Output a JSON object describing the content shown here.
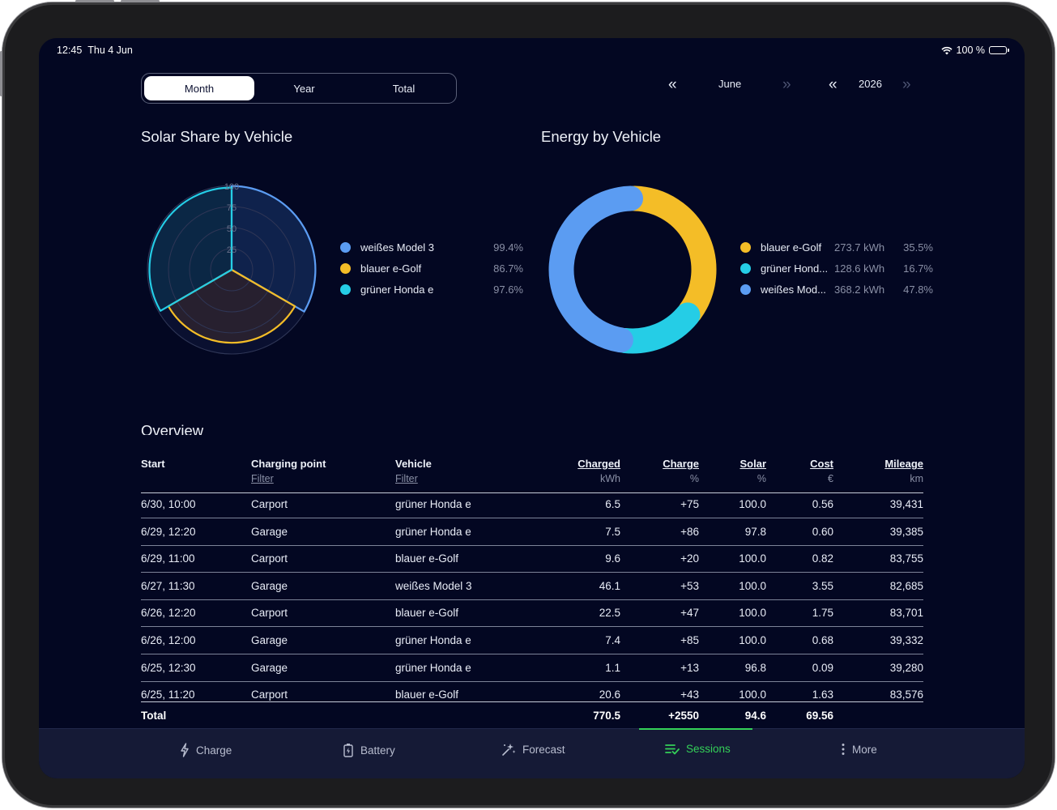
{
  "status_bar": {
    "time": "12:45",
    "date": "Thu 4 Jun",
    "battery": "100 %"
  },
  "period_tabs": [
    {
      "label": "Month",
      "active": true
    },
    {
      "label": "Year",
      "active": false
    },
    {
      "label": "Total",
      "active": false
    }
  ],
  "month_nav": {
    "label": "June",
    "prev_icon": "double-chevron-left-icon",
    "next_icon": "double-chevron-right-icon"
  },
  "year_nav": {
    "label": "2026"
  },
  "solar_share": {
    "title": "Solar Share by Vehicle",
    "ticks": [
      "100",
      "75",
      "50",
      "25"
    ],
    "legend": [
      {
        "name": "weißes Model 3",
        "value": "99.4%",
        "color": "#5b9cf2"
      },
      {
        "name": "blauer e-Golf",
        "value": "86.7%",
        "color": "#f4bd27"
      },
      {
        "name": "grüner Honda e",
        "value": "97.6%",
        "color": "#25cde6"
      }
    ]
  },
  "energy": {
    "title": "Energy by Vehicle",
    "legend": [
      {
        "name": "blauer e-Golf",
        "kwh": "273.7 kWh",
        "pct": "35.5%",
        "color": "#f4bd27"
      },
      {
        "name": "grüner Hond...",
        "kwh": "128.6 kWh",
        "pct": "16.7%",
        "color": "#25cde6"
      },
      {
        "name": "weißes Mod...",
        "kwh": "368.2 kWh",
        "pct": "47.8%",
        "color": "#5b9cf2"
      }
    ]
  },
  "chart_data": [
    {
      "type": "radar",
      "title": "Solar Share by Vehicle",
      "categories": [
        "weißes Model 3",
        "blauer e-Golf",
        "grüner Honda e"
      ],
      "values": [
        99.4,
        86.7,
        97.6
      ],
      "ylim": [
        0,
        100
      ],
      "ticks": [
        25,
        50,
        75,
        100
      ]
    },
    {
      "type": "pie",
      "title": "Energy by Vehicle",
      "categories": [
        "blauer e-Golf",
        "grüner Honda e",
        "weißes Model 3"
      ],
      "values": [
        273.7,
        128.6,
        368.2
      ],
      "percent": [
        35.5,
        16.7,
        47.8
      ]
    }
  ],
  "overview": {
    "title": "Overview",
    "columns": {
      "start": "Start",
      "point": "Charging point",
      "point_filter": "Filter",
      "vehicle": "Vehicle",
      "vehicle_filter": "Filter",
      "charged": "Charged",
      "charged_unit": "kWh",
      "charge": "Charge",
      "charge_unit": "%",
      "solar": "Solar",
      "solar_unit": "%",
      "cost": "Cost",
      "cost_unit": "€",
      "mileage": "Mileage",
      "mileage_unit": "km"
    },
    "rows": [
      {
        "start": "6/30, 10:00",
        "point": "Carport",
        "vehicle": "grüner Honda e",
        "charged": "6.5",
        "charge": "+75",
        "solar": "100.0",
        "cost": "0.56",
        "mileage": "39,431"
      },
      {
        "start": "6/29, 12:20",
        "point": "Garage",
        "vehicle": "grüner Honda e",
        "charged": "7.5",
        "charge": "+86",
        "solar": "97.8",
        "cost": "0.60",
        "mileage": "39,385"
      },
      {
        "start": "6/29, 11:00",
        "point": "Carport",
        "vehicle": "blauer e-Golf",
        "charged": "9.6",
        "charge": "+20",
        "solar": "100.0",
        "cost": "0.82",
        "mileage": "83,755"
      },
      {
        "start": "6/27, 11:30",
        "point": "Garage",
        "vehicle": "weißes Model 3",
        "charged": "46.1",
        "charge": "+53",
        "solar": "100.0",
        "cost": "3.55",
        "mileage": "82,685"
      },
      {
        "start": "6/26, 12:20",
        "point": "Carport",
        "vehicle": "blauer e-Golf",
        "charged": "22.5",
        "charge": "+47",
        "solar": "100.0",
        "cost": "1.75",
        "mileage": "83,701"
      },
      {
        "start": "6/26, 12:00",
        "point": "Garage",
        "vehicle": "grüner Honda e",
        "charged": "7.4",
        "charge": "+85",
        "solar": "100.0",
        "cost": "0.68",
        "mileage": "39,332"
      },
      {
        "start": "6/25, 12:30",
        "point": "Garage",
        "vehicle": "grüner Honda e",
        "charged": "1.1",
        "charge": "+13",
        "solar": "96.8",
        "cost": "0.09",
        "mileage": "39,280"
      },
      {
        "start": "6/25, 11:20",
        "point": "Carport",
        "vehicle": "blauer e-Golf",
        "charged": "20.6",
        "charge": "+43",
        "solar": "100.0",
        "cost": "1.63",
        "mileage": "83,576"
      }
    ],
    "total": {
      "label": "Total",
      "charged": "770.5",
      "charge": "+2550",
      "solar": "94.6",
      "cost": "69.56"
    }
  },
  "tabbar": [
    {
      "label": "Charge",
      "icon": "bolt-icon",
      "active": false
    },
    {
      "label": "Battery",
      "icon": "battery-icon",
      "active": false
    },
    {
      "label": "Forecast",
      "icon": "sparkles-icon",
      "active": false
    },
    {
      "label": "Sessions",
      "icon": "list-check-icon",
      "active": true
    },
    {
      "label": "More",
      "icon": "more-vertical-icon",
      "active": false
    }
  ]
}
